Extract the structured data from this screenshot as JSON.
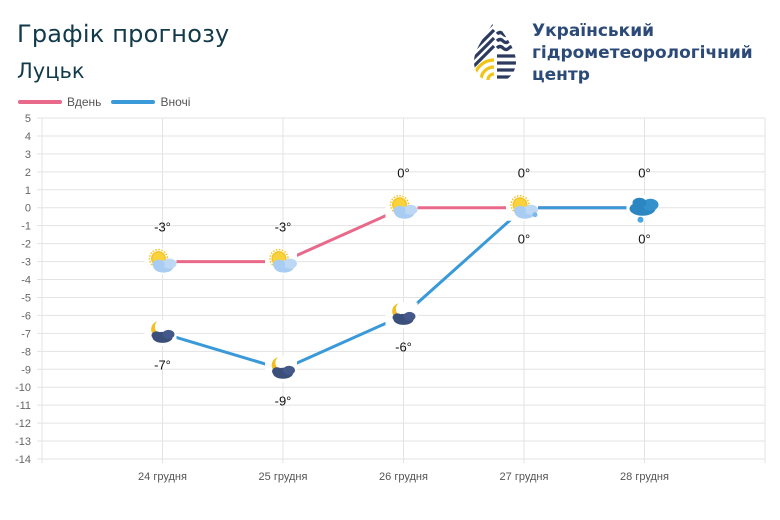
{
  "header": {
    "title": "Графік прогнозу",
    "city": "Луцьк"
  },
  "logo": {
    "line1": "Український",
    "line2": "гідрометеорологічний",
    "line3": "центр"
  },
  "legend": [
    {
      "label": "Вдень",
      "color": "#e8698a"
    },
    {
      "label": "Вночі",
      "color": "#3a9ad9"
    }
  ],
  "chart_data": {
    "type": "line",
    "title": "Графік прогнозу — Луцьк",
    "xlabel": "",
    "ylabel": "",
    "ylim": [
      -14,
      5
    ],
    "yticks": [
      5,
      4,
      3,
      2,
      1,
      0,
      -1,
      -2,
      -3,
      -4,
      -5,
      -6,
      -7,
      -8,
      -9,
      -10,
      -11,
      -12,
      -13,
      -14
    ],
    "categories": [
      "24 грудня",
      "25 грудня",
      "26 грудня",
      "27 грудня",
      "28 грудня"
    ],
    "series": [
      {
        "name": "Вдень",
        "color": "#e8698a",
        "values": [
          -3,
          -3,
          0,
          0,
          0
        ],
        "labels": [
          "-3°",
          "-3°",
          "0°",
          "0°",
          "0°"
        ],
        "icons": [
          "partly-cloudy-day-icon",
          "partly-cloudy-day-icon",
          "partly-cloudy-day-icon",
          "partly-cloudy-snow-day-icon",
          "cloudy-snow-icon"
        ]
      },
      {
        "name": "Вночі",
        "color": "#3a9ad9",
        "values": [
          -7,
          -9,
          -6,
          0,
          0
        ],
        "labels": [
          "-7°",
          "-9°",
          "-6°",
          "0°",
          "0°"
        ],
        "icons": [
          "cloudy-night-icon",
          "cloudy-night-icon",
          "cloudy-night-icon",
          "none",
          "none"
        ]
      }
    ],
    "grid": true,
    "legend_position": "top-left"
  }
}
